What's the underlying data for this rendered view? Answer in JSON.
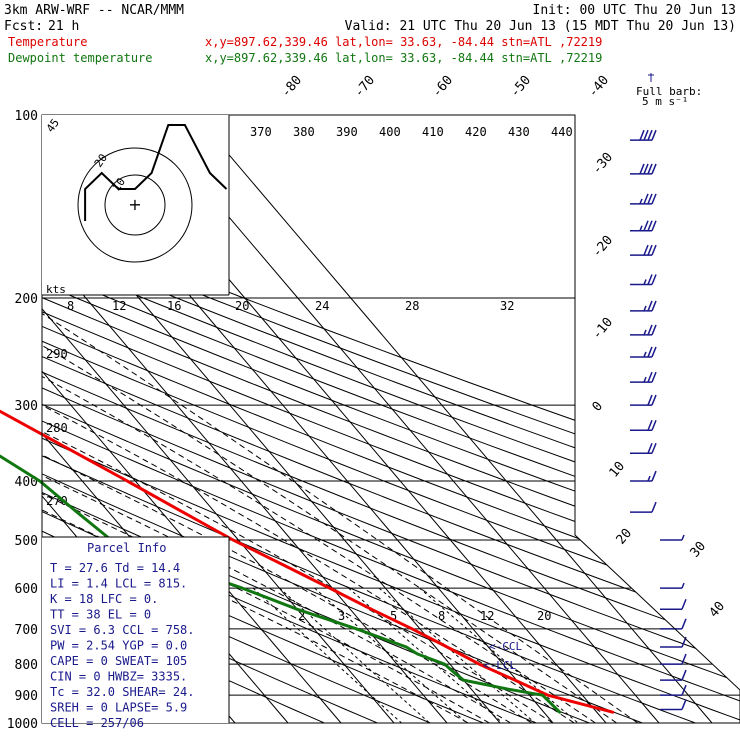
{
  "header": {
    "model": "3km ARW-WRF -- NCAR/MMM",
    "init": "Init: 00 UTC Thu 20 Jun 13",
    "fcst_label": "Fcst:",
    "fcst_value": "21 h",
    "valid": "Valid: 21 UTC Thu 20 Jun 13 (15 MDT Thu 20 Jun 13)",
    "temp_label": "Temperature",
    "temp_info": "x,y=897.62,339.46   lat,lon= 33.63, -84.44   stn=ATL ,72219",
    "dew_label": "Dewpoint temperature",
    "dew_info": "x,y=897.62,339.46   lat,lon= 33.63, -84.44   stn=ATL ,72219"
  },
  "colors": {
    "temperature": "#ee0000",
    "dewpoint": "#117711",
    "text_red": "#dd0000",
    "text_green": "#117711",
    "navy": "#1a1a8c",
    "grid": "#000000"
  },
  "parcel": {
    "title": "Parcel Info",
    "rows": [
      "T   =   27.6  Td  =  14.4",
      "LI  =    1.4  LCL =  815.",
      "K   =     18  LFC =    0.",
      "TT  =     38  EL  =     0",
      "SVI =    6.3  CCL =  758.",
      "PW  =   2.54  YGP =   0.0",
      "CAPE =     0  SWEAT=   105",
      "CIN  =     0  HWBZ= 3335.",
      "Tc  =   32.0  SHEAR=   24.",
      "SREH =     0  LAPSE=   5.9",
      "CELL = 257/06"
    ]
  },
  "barb_legend": {
    "line1": "Full barb:",
    "line2": "5 m s⁻¹"
  },
  "hodograph": {
    "unit": "kts",
    "rings": [
      "10",
      "20"
    ],
    "label_45": "45"
  },
  "annotations": {
    "ccl": "<-CCL",
    "lcl": "<-LCL"
  },
  "chart_data": {
    "type": "line",
    "subtype": "skew-T log-P sounding",
    "y_scale": "log",
    "ylim": [
      1000,
      100
    ],
    "y_ticks": [
      100,
      200,
      300,
      400,
      500,
      600,
      700,
      800,
      900,
      1000
    ],
    "isotherm_labels": [
      -80,
      -70,
      -60,
      -50,
      -40,
      -30,
      -20,
      -10,
      0,
      10,
      20,
      30,
      40
    ],
    "theta_labels": [
      370,
      380,
      390,
      400,
      410,
      420,
      430,
      440
    ],
    "theta_e_labels": [
      290,
      280,
      270
    ],
    "mixing_ratio_upper": [
      8,
      12,
      16,
      20,
      24,
      28,
      32
    ],
    "mixing_ratio_lower": [
      2,
      3,
      5,
      8,
      12,
      20
    ],
    "series": [
      {
        "name": "Temperature",
        "p": [
          960,
          900,
          850,
          800,
          750,
          700,
          650,
          600,
          550,
          500,
          450,
          400,
          350,
          300,
          275,
          250,
          225,
          200,
          175,
          150,
          130,
          115,
          100
        ],
        "t": [
          33.0,
          23.5,
          19.7,
          15.5,
          12.2,
          8.5,
          4.0,
          -0.5,
          -5.5,
          -11.0,
          -16.0,
          -21.5,
          -28.0,
          -35.5,
          -40.0,
          -45.5,
          -51.0,
          -56.5,
          -63.0,
          -68.5,
          -71.0,
          -72.0,
          -75.0
        ]
      },
      {
        "name": "Dewpoint temperature",
        "p": [
          960,
          900,
          880,
          850,
          830,
          800,
          770,
          750,
          700,
          650,
          600,
          550,
          500,
          450,
          400,
          350,
          325,
          300,
          260,
          230,
          200,
          170,
          150,
          130,
          115,
          100
        ],
        "t": [
          23.0,
          22.5,
          17.0,
          10.0,
          9.5,
          9.0,
          5.5,
          4.5,
          -2.0,
          -10.0,
          -17.0,
          -26.0,
          -34.0,
          -36.0,
          -38.0,
          -43.0,
          -45.0,
          -47.0,
          -47.0,
          -49.0,
          -55.0,
          -63.0,
          -72.0,
          -79.0,
          -83.0,
          -86.0
        ]
      }
    ],
    "wind_barbs": [
      {
        "p": 110,
        "spd": 40
      },
      {
        "p": 125,
        "spd": 40
      },
      {
        "p": 140,
        "spd": 35
      },
      {
        "p": 155,
        "spd": 35
      },
      {
        "p": 170,
        "spd": 30
      },
      {
        "p": 190,
        "spd": 25
      },
      {
        "p": 210,
        "spd": 25
      },
      {
        "p": 230,
        "spd": 25
      },
      {
        "p": 250,
        "spd": 25
      },
      {
        "p": 275,
        "spd": 25
      },
      {
        "p": 300,
        "spd": 20
      },
      {
        "p": 330,
        "spd": 20
      },
      {
        "p": 360,
        "spd": 20
      },
      {
        "p": 400,
        "spd": 15
      },
      {
        "p": 450,
        "spd": 10
      },
      {
        "p": 500,
        "spd": 5
      },
      {
        "p": 600,
        "spd": 5
      },
      {
        "p": 650,
        "spd": 10
      },
      {
        "p": 700,
        "spd": 10
      },
      {
        "p": 750,
        "spd": 10
      },
      {
        "p": 800,
        "spd": 10
      },
      {
        "p": 850,
        "spd": 10
      },
      {
        "p": 900,
        "spd": 10
      },
      {
        "p": 950,
        "spd": 10
      }
    ],
    "hodograph_uv": [
      [
        -6,
        -1
      ],
      [
        -6,
        1
      ],
      [
        -4,
        2
      ],
      [
        -2,
        1
      ],
      [
        0,
        1
      ],
      [
        2,
        2
      ],
      [
        4,
        5
      ],
      [
        6,
        5
      ],
      [
        9,
        2
      ],
      [
        11,
        1
      ]
    ]
  }
}
